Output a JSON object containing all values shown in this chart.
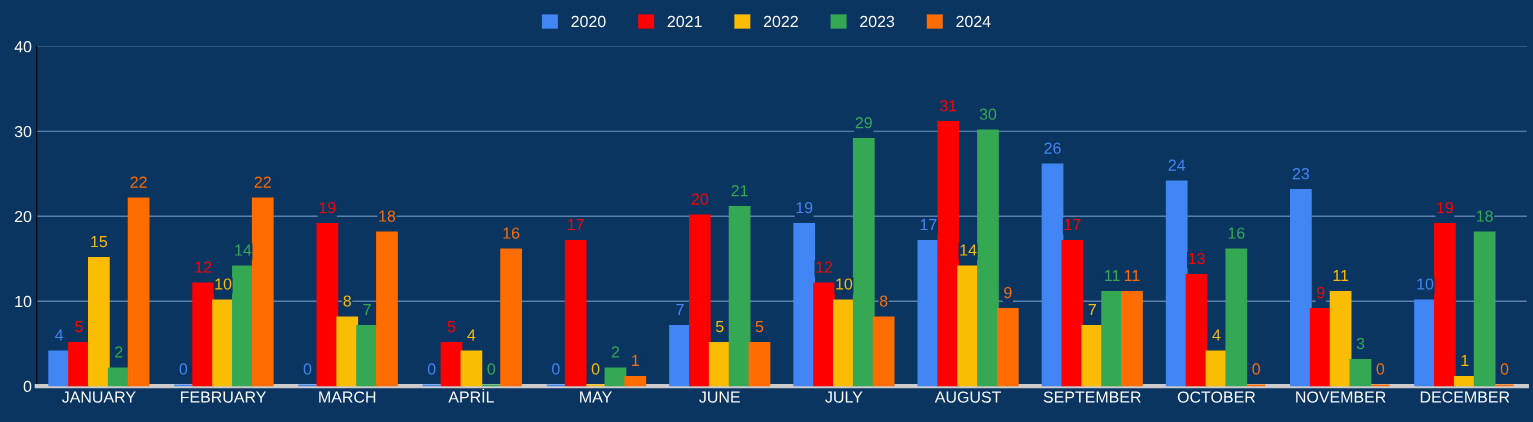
{
  "chart_data": {
    "type": "bar",
    "categories": [
      "JANUARY",
      "FEBRUARY",
      "MARCH",
      "APRİL",
      "MAY",
      "JUNE",
      "JULY",
      "AUGUST",
      "SEPTEMBER",
      "OCTOBER",
      "NOVEMBER",
      "DECEMBER"
    ],
    "series": [
      {
        "name": "2020",
        "color": "#4285f4",
        "values": [
          4,
          0,
          0,
          0,
          0,
          7,
          19,
          17,
          26,
          24,
          23,
          10
        ]
      },
      {
        "name": "2021",
        "color": "#ff0000",
        "values": [
          5,
          12,
          19,
          5,
          17,
          20,
          12,
          31,
          17,
          13,
          9,
          19
        ]
      },
      {
        "name": "2022",
        "color": "#fbbc04",
        "values": [
          15,
          10,
          8,
          4,
          0,
          5,
          10,
          14,
          7,
          4,
          11,
          1
        ]
      },
      {
        "name": "2023",
        "color": "#34a853",
        "values": [
          2,
          14,
          7,
          0,
          2,
          21,
          29,
          30,
          11,
          16,
          3,
          18
        ]
      },
      {
        "name": "2024",
        "color": "#ff6d01",
        "values": [
          22,
          22,
          18,
          16,
          1,
          5,
          8,
          9,
          11,
          0,
          0,
          0
        ]
      }
    ],
    "ylim": [
      0,
      40
    ],
    "yticks": [
      0,
      10,
      20,
      30,
      40
    ],
    "grid": "y",
    "legend": "top",
    "data_labels": true
  }
}
